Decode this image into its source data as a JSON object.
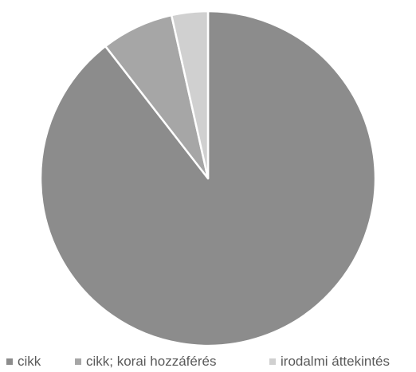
{
  "chart_data": {
    "type": "pie",
    "categories": [
      "cikk",
      "cikk; korai hozzáférés",
      "irodalmi áttekintés"
    ],
    "values": [
      89.5,
      7,
      3.5
    ],
    "unit": "%",
    "start_angle_deg": 0,
    "direction": "clockwise",
    "colors": [
      "#8c8c8c",
      "#a6a6a6",
      "#d0d0d0"
    ],
    "slice_border_color": "#ffffff",
    "title": "",
    "legend": {
      "position": "bottom",
      "items": [
        {
          "label": "cikk",
          "color": "#8c8c8c"
        },
        {
          "label": "cikk; korai hozzáférés",
          "color": "#a6a6a6"
        },
        {
          "label": "irodalmi áttekintés",
          "color": "#d0d0d0"
        }
      ]
    }
  }
}
